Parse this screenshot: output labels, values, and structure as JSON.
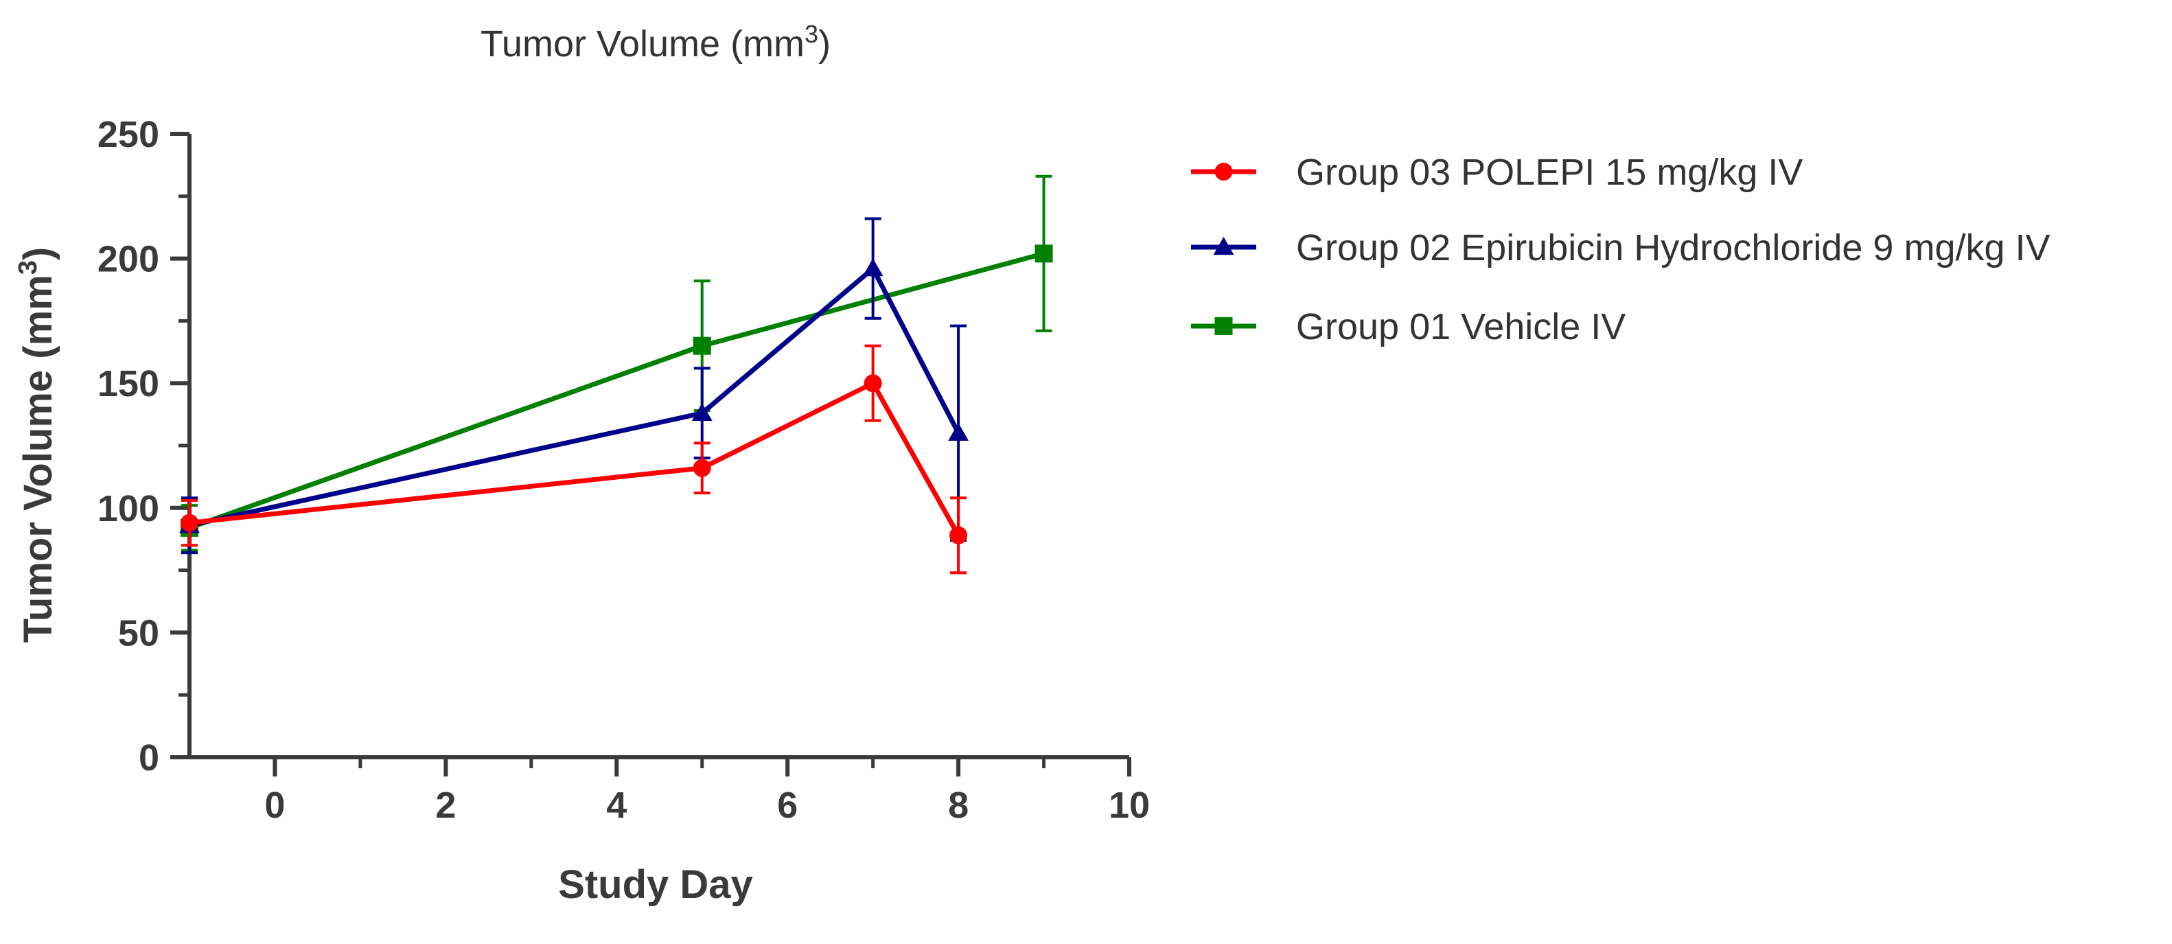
{
  "chart_data": {
    "type": "line",
    "title_main": "Tumor Volume (mm",
    "title_sup": "3",
    "title_end": ")",
    "xlabel": "Study Day",
    "ylabel_main": "Tumor  Volume  (mm",
    "ylabel_sup": "3",
    "ylabel_end": ")",
    "xlim": [
      -1,
      10
    ],
    "ylim": [
      0,
      250
    ],
    "xticks": [
      0,
      2,
      4,
      6,
      8,
      10
    ],
    "xticks_minor": [
      1,
      3,
      5,
      7,
      9
    ],
    "yticks": [
      0,
      50,
      100,
      150,
      200,
      250
    ],
    "yticks_minor": [
      25,
      75,
      125,
      175,
      225
    ],
    "legend_position": "right",
    "series": [
      {
        "name": "Group 03 POLEPI 15 mg/kg IV",
        "marker": "circle",
        "color": "#ff0000",
        "x": [
          -1,
          5,
          7,
          8
        ],
        "y": [
          94,
          116,
          150,
          89
        ],
        "err": [
          9,
          10,
          15,
          15
        ]
      },
      {
        "name": "Group 02 Epirubicin Hydrochloride 9 mg/kg IV",
        "marker": "triangle",
        "color": "#00008b",
        "x": [
          -1,
          5,
          7,
          8
        ],
        "y": [
          93,
          138,
          196,
          130
        ],
        "err": [
          11,
          18,
          20,
          43
        ]
      },
      {
        "name": "Group 01 Vehicle IV",
        "marker": "square",
        "color": "#008000",
        "x": [
          -1,
          5,
          9
        ],
        "y": [
          92,
          165,
          202
        ],
        "err": [
          9,
          26,
          31
        ]
      }
    ]
  }
}
